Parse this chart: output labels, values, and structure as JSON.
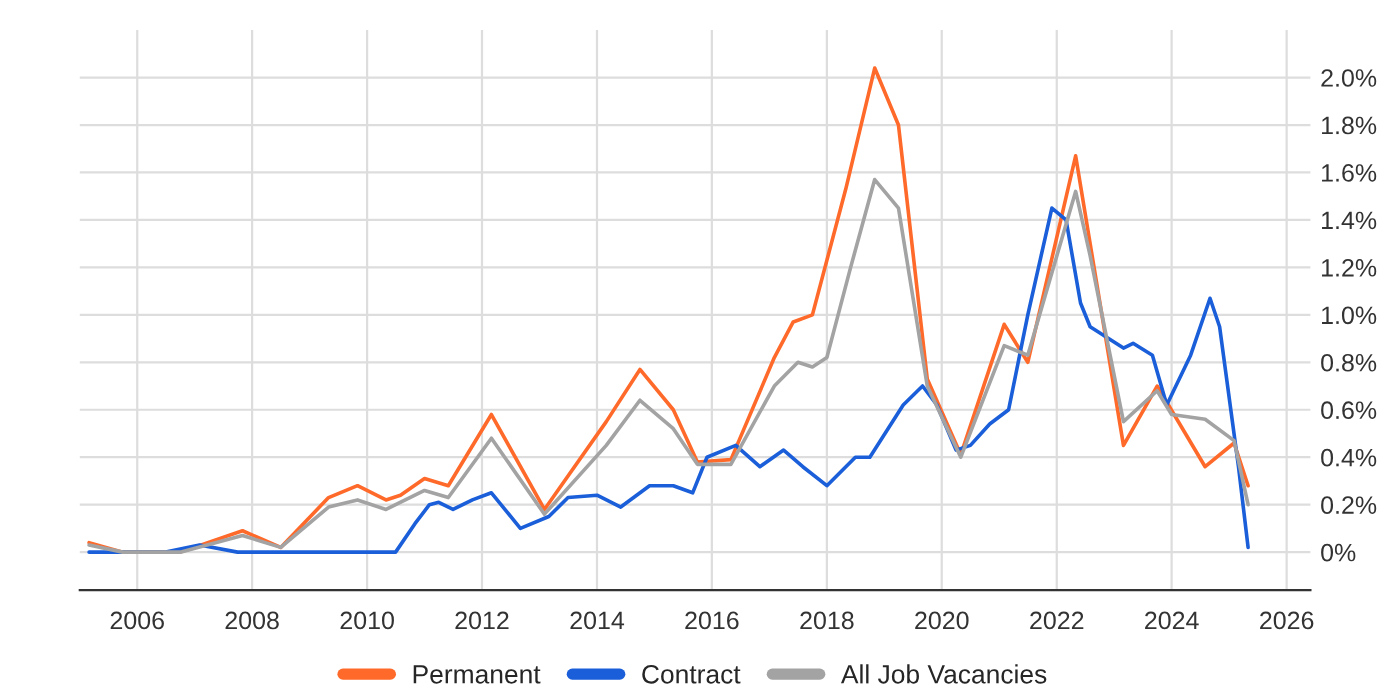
{
  "chart_data": {
    "type": "line",
    "xlim": [
      "2005-01",
      "2026-06"
    ],
    "xticks": [
      {
        "value": "2006-01",
        "label": "2006"
      },
      {
        "value": "2008-01",
        "label": "2008"
      },
      {
        "value": "2010-01",
        "label": "2010"
      },
      {
        "value": "2012-01",
        "label": "2012"
      },
      {
        "value": "2014-01",
        "label": "2014"
      },
      {
        "value": "2016-01",
        "label": "2016"
      },
      {
        "value": "2018-01",
        "label": "2018"
      },
      {
        "value": "2020-01",
        "label": "2020"
      },
      {
        "value": "2022-01",
        "label": "2022"
      },
      {
        "value": "2024-01",
        "label": "2024"
      },
      {
        "value": "2026-01",
        "label": "2026"
      }
    ],
    "ylim": [
      -0.16,
      2.2
    ],
    "yticks": [
      {
        "value": 0,
        "label": "0%"
      },
      {
        "value": 0.2,
        "label": "0.2%"
      },
      {
        "value": 0.4,
        "label": "0.4%"
      },
      {
        "value": 0.6,
        "label": "0.6%"
      },
      {
        "value": 0.8,
        "label": "0.8%"
      },
      {
        "value": 1.0,
        "label": "1.0%"
      },
      {
        "value": 1.2,
        "label": "1.2%"
      },
      {
        "value": 1.4,
        "label": "1.4%"
      },
      {
        "value": 1.6,
        "label": "1.6%"
      },
      {
        "value": 1.8,
        "label": "1.8%"
      },
      {
        "value": 2.0,
        "label": "2.0%"
      }
    ],
    "grid": true,
    "legend": "bottom",
    "marker": "none",
    "line_style": "solid",
    "series": [
      {
        "name": "Permanent",
        "color": "#ff6a2b",
        "x": [
          "2005-03",
          "2005-10",
          "2006-10",
          "2007-11",
          "2008-07",
          "2009-05",
          "2009-11",
          "2010-05",
          "2010-08",
          "2011-01",
          "2011-06",
          "2012-03",
          "2013-02",
          "2014-03",
          "2014-10",
          "2015-05",
          "2015-10",
          "2016-05",
          "2017-02",
          "2017-06",
          "2017-10",
          "2018-05",
          "2018-11",
          "2019-04",
          "2019-10",
          "2020-05",
          "2021-02",
          "2021-07",
          "2022-05",
          "2023-03",
          "2023-10",
          "2024-08",
          "2025-02",
          "2025-05"
        ],
        "values": [
          0.04,
          0.0,
          0.0,
          0.09,
          0.02,
          0.23,
          0.28,
          0.22,
          0.24,
          0.31,
          0.28,
          0.58,
          0.18,
          0.55,
          0.77,
          0.6,
          0.38,
          0.39,
          0.82,
          0.97,
          1.0,
          1.53,
          2.04,
          1.8,
          0.73,
          0.41,
          0.96,
          0.8,
          1.67,
          0.45,
          0.7,
          0.36,
          0.46,
          0.28
        ]
      },
      {
        "name": "Contract",
        "color": "#1a5fd9",
        "x": [
          "2005-03",
          "2006-07",
          "2007-02",
          "2007-10",
          "2010-07",
          "2010-11",
          "2011-02",
          "2011-04",
          "2011-07",
          "2011-11",
          "2012-03",
          "2012-09",
          "2013-03",
          "2013-07",
          "2014-01",
          "2014-06",
          "2014-12",
          "2015-05",
          "2015-09",
          "2015-12",
          "2016-06",
          "2016-11",
          "2017-04",
          "2017-08",
          "2018-01",
          "2018-07",
          "2018-10",
          "2019-05",
          "2019-09",
          "2019-12",
          "2020-04",
          "2020-07",
          "2020-11",
          "2021-03",
          "2021-07",
          "2021-12",
          "2022-03",
          "2022-06",
          "2022-08",
          "2023-03",
          "2023-05",
          "2023-09",
          "2023-12",
          "2024-05",
          "2024-09",
          "2024-11",
          "2025-03",
          "2025-05"
        ],
        "values": [
          0.0,
          0.0,
          0.03,
          0.0,
          0.0,
          0.12,
          0.2,
          0.21,
          0.18,
          0.22,
          0.25,
          0.1,
          0.15,
          0.23,
          0.24,
          0.19,
          0.28,
          0.28,
          0.25,
          0.4,
          0.45,
          0.36,
          0.43,
          0.36,
          0.28,
          0.4,
          0.4,
          0.62,
          0.7,
          0.62,
          0.43,
          0.45,
          0.54,
          0.6,
          1.0,
          1.45,
          1.4,
          1.05,
          0.95,
          0.86,
          0.88,
          0.83,
          0.62,
          0.83,
          1.07,
          0.95,
          0.36,
          0.02
        ]
      },
      {
        "name": "All Job Vacancies",
        "color": "#a3a3a3",
        "x": [
          "2005-03",
          "2005-10",
          "2006-10",
          "2007-11",
          "2008-07",
          "2009-05",
          "2009-11",
          "2010-05",
          "2011-01",
          "2011-06",
          "2012-03",
          "2013-02",
          "2014-03",
          "2014-10",
          "2015-05",
          "2015-10",
          "2016-05",
          "2017-02",
          "2017-07",
          "2017-10",
          "2018-01",
          "2018-06",
          "2018-11",
          "2019-04",
          "2019-10",
          "2020-05",
          "2021-02",
          "2021-07",
          "2022-05",
          "2022-08",
          "2023-03",
          "2023-10",
          "2024-01",
          "2024-08",
          "2025-02",
          "2025-05"
        ],
        "values": [
          0.03,
          0.0,
          0.0,
          0.07,
          0.02,
          0.19,
          0.22,
          0.18,
          0.26,
          0.23,
          0.48,
          0.16,
          0.45,
          0.64,
          0.52,
          0.37,
          0.37,
          0.7,
          0.8,
          0.78,
          0.82,
          1.2,
          1.57,
          1.45,
          0.7,
          0.4,
          0.87,
          0.83,
          1.52,
          1.25,
          0.55,
          0.68,
          0.58,
          0.56,
          0.47,
          0.2
        ]
      }
    ]
  }
}
